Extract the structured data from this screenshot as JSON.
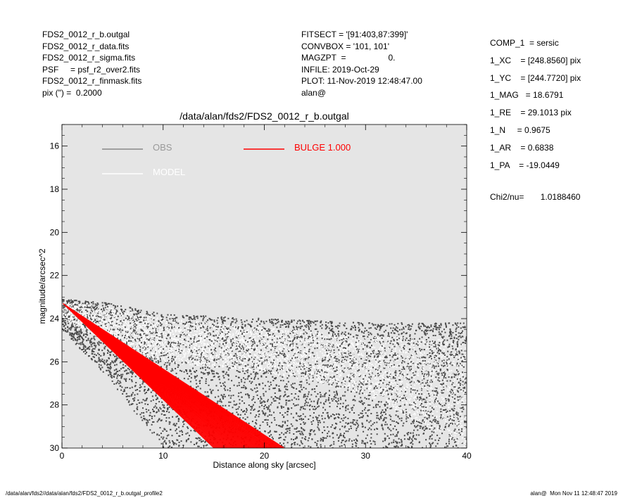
{
  "header_left": [
    "FDS2_0012_r_b.outgal",
    "FDS2_0012_r_data.fits",
    "FDS2_0012_r_sigma.fits",
    "PSF     = psf_r2_over2.fits",
    "FDS2_0012_r_finmask.fits",
    "pix (\") =  0.2000"
  ],
  "header_mid": [
    "FITSECT = '[91:403,87:399]'",
    "CONVBOX = '101, 101'",
    "MAGZPT  =                  0.",
    "INFILE: 2019-Oct-29",
    "PLOT: 11-Nov-2019 12:48:47.00",
    "alan@"
  ],
  "header_right": [
    "COMP_1  = sersic",
    "1_XC    = [248.8560] pix",
    "1_YC    = [244.7720] pix",
    "1_MAG   = 18.6791",
    "1_RE    = 29.1013 pix",
    "1_N     = 0.9675",
    "1_AR    = 0.6838",
    "1_PA    = -19.0449"
  ],
  "chi2_text": "Chi2/nu=       1.0188460",
  "footer_left": "/data/alan/fds2//data/alan/fds2/FDS2_0012_r_b.outgal_profile2",
  "footer_right": "alan@  Mon Nov 11 12:48:47 2019",
  "chart_data": {
    "type": "scatter",
    "title": "/data/alan/fds2/FDS2_0012_r_b.outgal",
    "xlabel": "Distance along sky [arcsec]",
    "ylabel": "magnitude/arcsec^2",
    "xlim": [
      0,
      40
    ],
    "ylim": [
      30,
      15
    ],
    "y_inverted": true,
    "xticks": [
      0,
      10,
      20,
      30,
      40
    ],
    "yticks": [
      16,
      18,
      20,
      22,
      24,
      26,
      28,
      30
    ],
    "grid": false,
    "background_color": "#e5e5e5",
    "legend": [
      {
        "label": "OBS",
        "color": "#888888",
        "text_color": "#999999"
      },
      {
        "label": "MODEL",
        "color": "#ffffff",
        "text_color": "#ffffff"
      },
      {
        "label": "BULGE  1.000",
        "color": "#ff0000",
        "text_color": "#ff0000"
      }
    ],
    "series": [
      {
        "name": "OBS",
        "color": "#4a4a4a",
        "description_values": {
          "x_range": [
            0,
            40
          ],
          "upper_envelope": {
            "x": [
              0,
              5,
              10,
              20,
              30,
              40
            ],
            "y": [
              23.1,
              23.3,
              23.8,
              24.0,
              24.2,
              24.2
            ]
          },
          "lower_envelope": {
            "x": [
              0,
              5,
              10,
              20,
              30,
              40
            ],
            "y": [
              24.5,
              27.0,
              30.0,
              30.0,
              30.0,
              30.0
            ]
          }
        }
      },
      {
        "name": "MODEL",
        "color": "#ffffff",
        "description_values": {
          "x_range": [
            0,
            40
          ],
          "upper_envelope": {
            "x": [
              0,
              5,
              10,
              20,
              30,
              40
            ],
            "y": [
              23.2,
              23.5,
              24.0,
              24.4,
              24.8,
              25.0
            ]
          },
          "lower_envelope": {
            "x": [
              0,
              5,
              10,
              20,
              30,
              40
            ],
            "y": [
              24.0,
              25.2,
              26.0,
              26.5,
              27.5,
              30.0
            ]
          }
        }
      },
      {
        "name": "BULGE  1.000",
        "color": "#ff0000",
        "fan": {
          "x_start": 0.1,
          "y_start": 23.3,
          "steep_edge": {
            "x_end": 15.0,
            "y_end": 30.0
          },
          "shallow_edge": {
            "x_end": 22.0,
            "y_end": 30.0
          }
        }
      }
    ]
  }
}
